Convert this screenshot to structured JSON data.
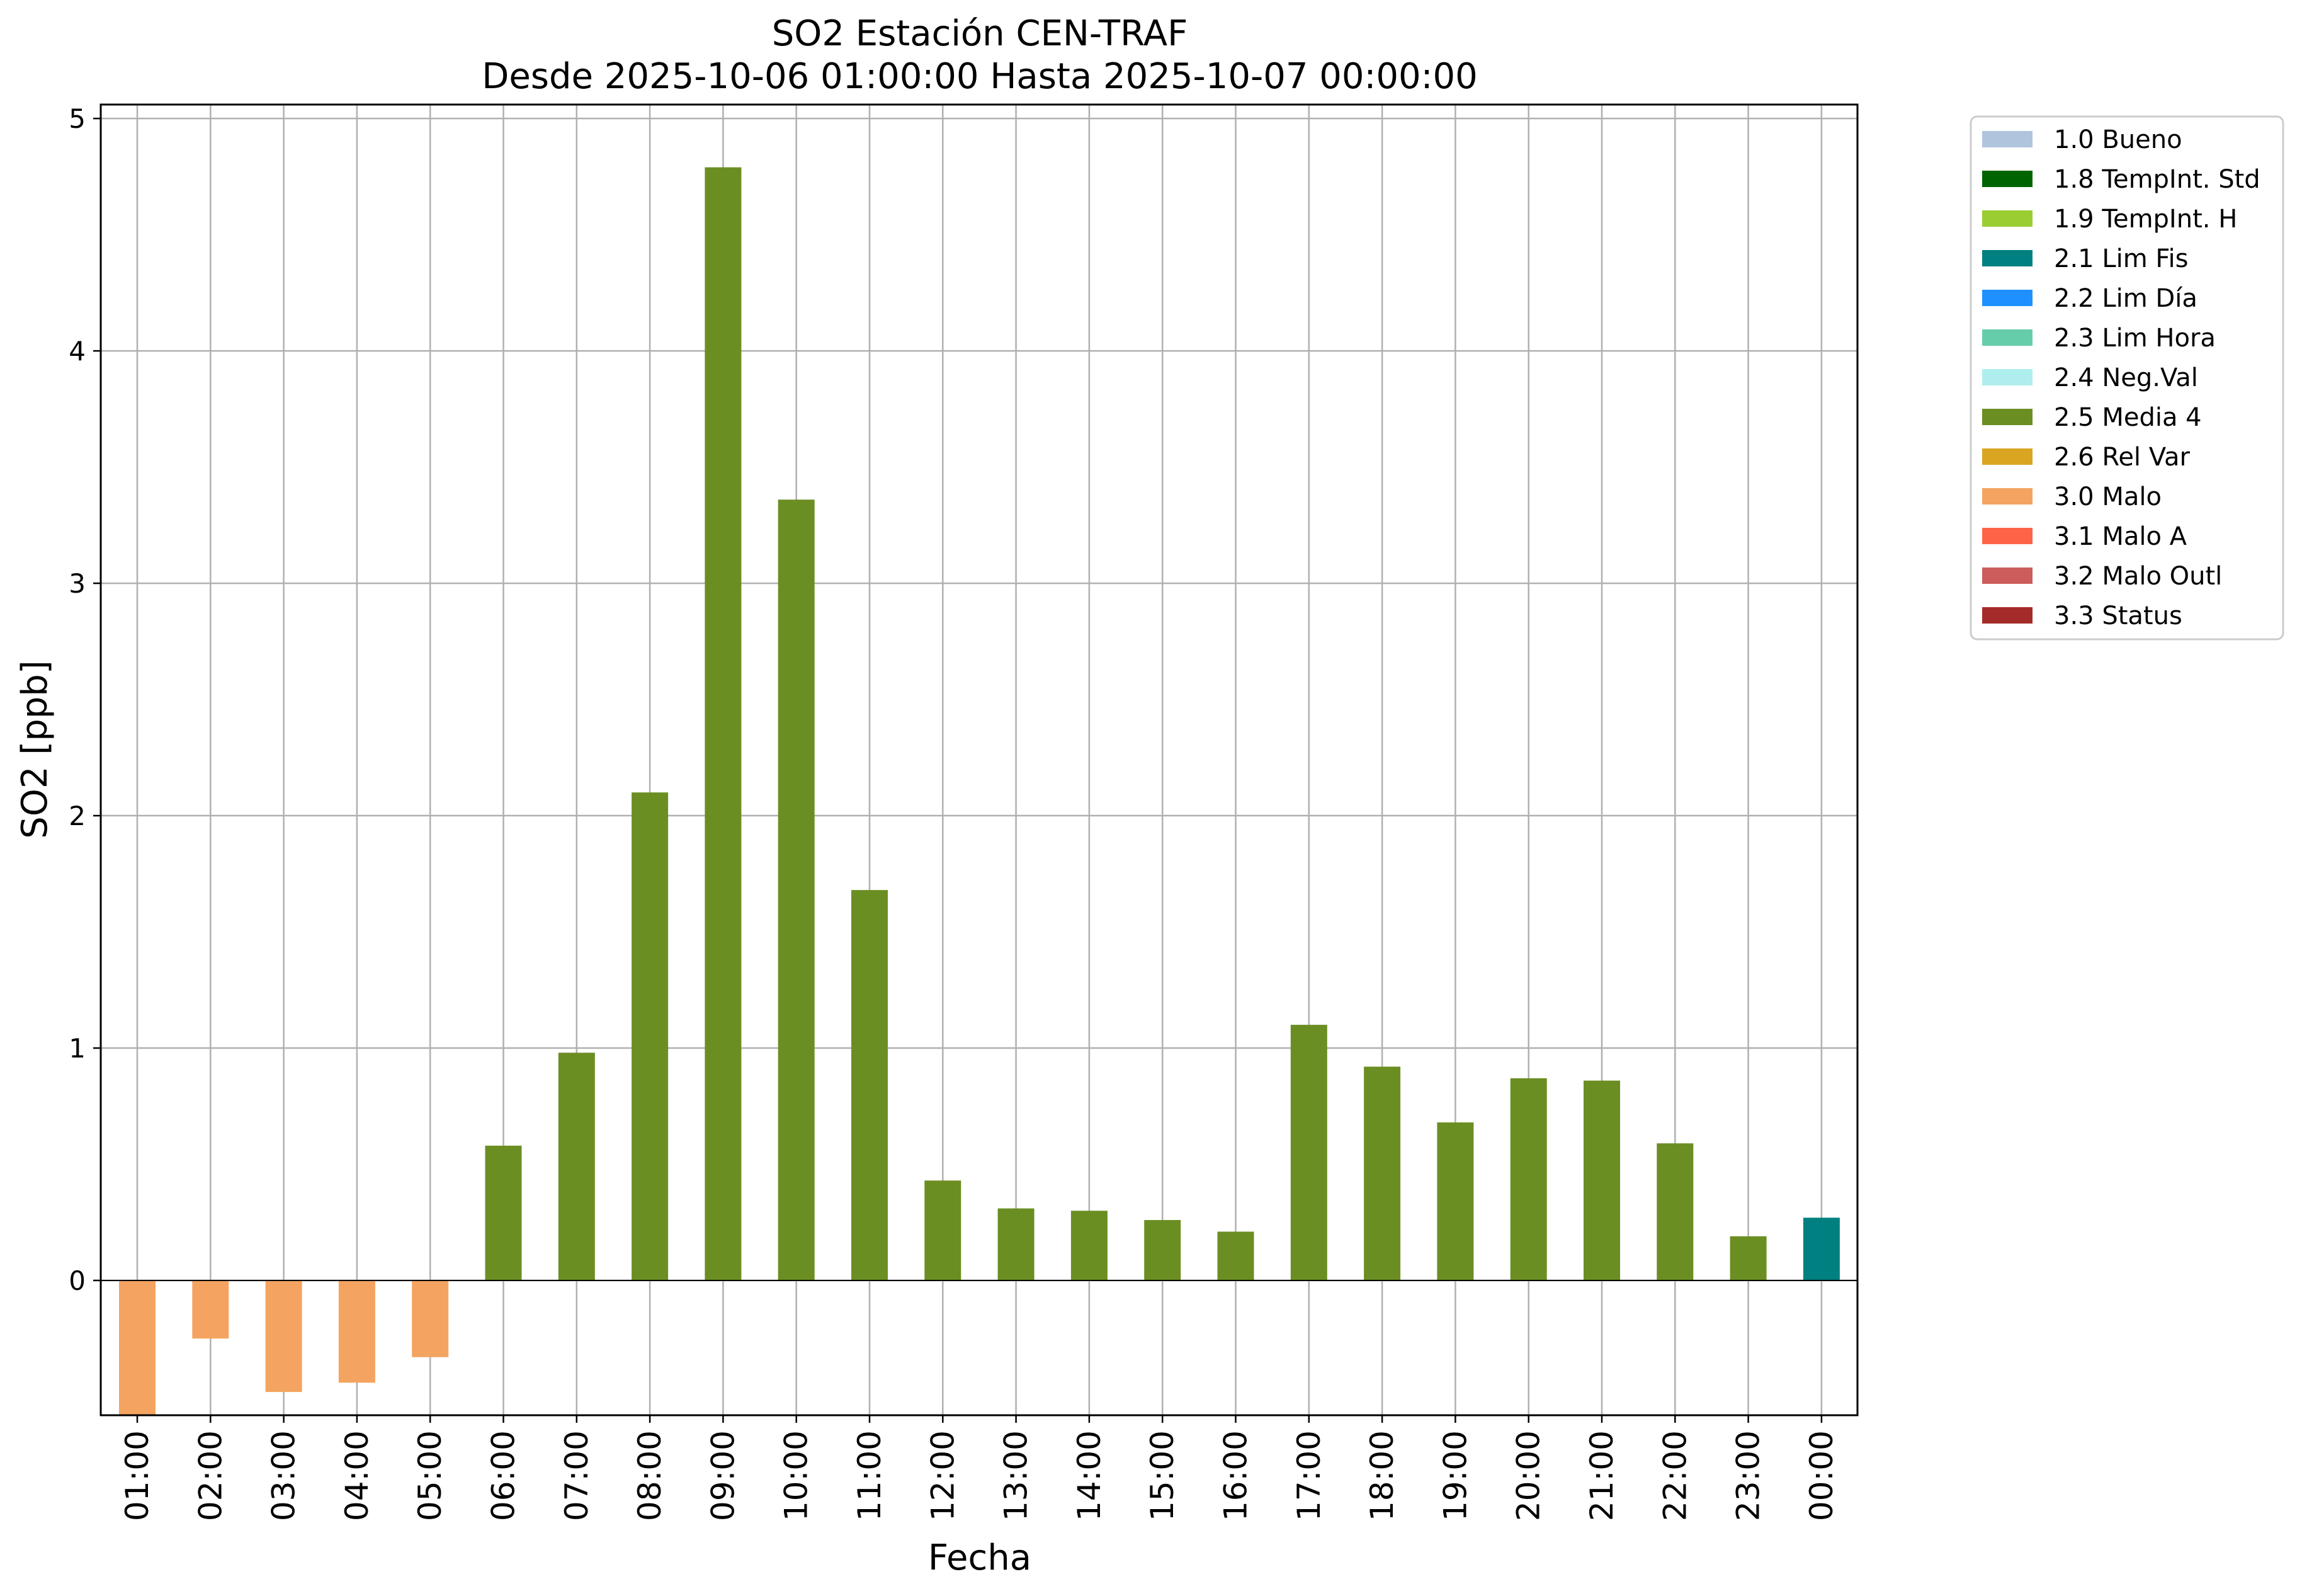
{
  "chart_data": {
    "type": "bar",
    "title": "SO2 Estación CEN-TRAF",
    "subtitle": "Desde 2025-10-06 01:00:00 Hasta 2025-10-07 00:00:00",
    "xlabel": "Fecha",
    "ylabel": "SO2 [ppb]",
    "ylim": [
      -0.58,
      5.06
    ],
    "yticks": [
      0,
      1,
      2,
      3,
      4,
      5
    ],
    "grid": true,
    "legend_position": "outside-right",
    "categories": [
      "01:00",
      "02:00",
      "03:00",
      "04:00",
      "05:00",
      "06:00",
      "07:00",
      "08:00",
      "09:00",
      "10:00",
      "11:00",
      "12:00",
      "13:00",
      "14:00",
      "15:00",
      "16:00",
      "17:00",
      "18:00",
      "19:00",
      "20:00",
      "21:00",
      "22:00",
      "23:00",
      "00:00"
    ],
    "values": [
      -0.58,
      -0.25,
      -0.48,
      -0.44,
      -0.33,
      0.58,
      0.98,
      2.1,
      4.79,
      3.36,
      1.68,
      0.43,
      0.31,
      0.3,
      0.26,
      0.21,
      1.1,
      0.92,
      0.68,
      0.87,
      0.86,
      0.59,
      0.19,
      0.27
    ],
    "flags": [
      "3.0 Malo",
      "3.0 Malo",
      "3.0 Malo",
      "3.0 Malo",
      "3.0 Malo",
      "2.5 Media 4",
      "2.5 Media 4",
      "2.5 Media 4",
      "2.5 Media 4",
      "2.5 Media 4",
      "2.5 Media 4",
      "2.5 Media 4",
      "2.5 Media 4",
      "2.5 Media 4",
      "2.5 Media 4",
      "2.5 Media 4",
      "2.5 Media 4",
      "2.5 Media 4",
      "2.5 Media 4",
      "2.5 Media 4",
      "2.5 Media 4",
      "2.5 Media 4",
      "2.5 Media 4",
      "2.1 Lim Fis"
    ],
    "legend": [
      {
        "name": "1.0 Bueno",
        "color": "#b0c4de"
      },
      {
        "name": "1.8 TempInt. Std",
        "color": "#006400"
      },
      {
        "name": "1.9 TempInt. H",
        "color": "#9acd32"
      },
      {
        "name": "2.1 Lim Fis",
        "color": "#008080"
      },
      {
        "name": "2.2 Lim Día",
        "color": "#1e90ff"
      },
      {
        "name": "2.3 Lim Hora",
        "color": "#66cdaa"
      },
      {
        "name": "2.4 Neg.Val",
        "color": "#afeeee"
      },
      {
        "name": "2.5 Media 4",
        "color": "#6b8e23"
      },
      {
        "name": "2.6 Rel Var",
        "color": "#daa520"
      },
      {
        "name": "3.0 Malo",
        "color": "#f4a460"
      },
      {
        "name": "3.1 Malo A",
        "color": "#ff6347"
      },
      {
        "name": "3.2 Malo Outl",
        "color": "#cd5c5c"
      },
      {
        "name": "3.3 Status",
        "color": "#a52a2a"
      }
    ]
  }
}
